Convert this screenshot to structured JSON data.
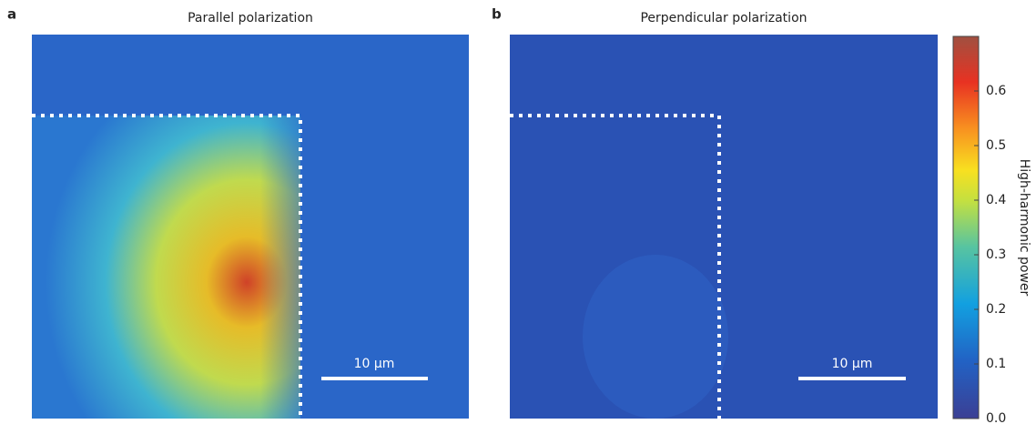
{
  "panels": [
    {
      "label": "a",
      "title": "Parallel polarization",
      "scale_bar": "10 µm"
    },
    {
      "label": "b",
      "title": "Perpendicular polarization",
      "scale_bar": "10 µm"
    }
  ],
  "colorbar": {
    "label": "High-harmonic power",
    "lim": [
      0,
      0.7
    ],
    "ticks": [
      {
        "value": 0,
        "label": "0.0"
      },
      0.1,
      0.2,
      0.3,
      0.4,
      0.5,
      0.6
    ]
  }
}
